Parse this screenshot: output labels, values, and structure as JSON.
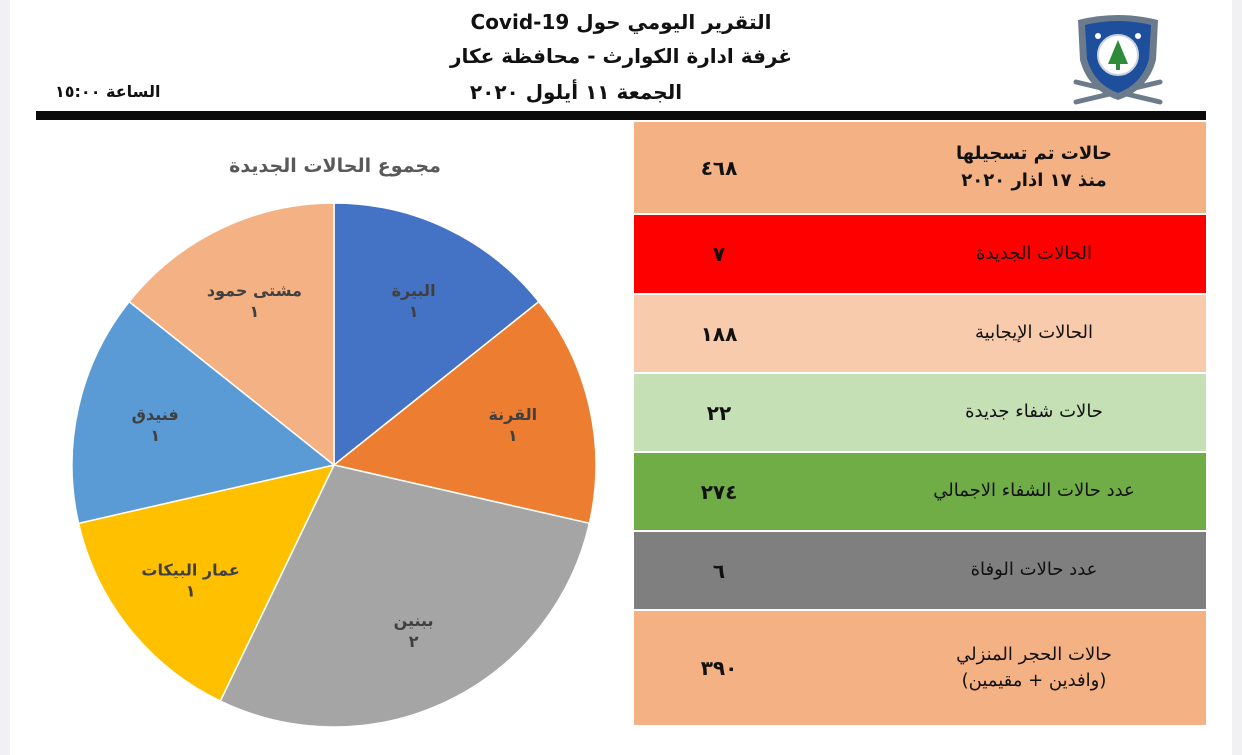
{
  "header": {
    "title_line1": "التقرير اليومي حول Covid-19",
    "title_line2": "غرفة ادارة الكوارث - محافظة عكار",
    "date": "الجمعة ١١ أيلول ٢٠٢٠",
    "time": "الساعة ١٥:٠٠"
  },
  "logo": {
    "icon": "cedar-shield-logo",
    "colors": {
      "shield": "#1d4f9c",
      "frame": "#6b7b8c"
    }
  },
  "stats": {
    "rows": [
      {
        "label": "حالات تم تسجيلها\nمنذ  ١٧ اذار ٢٠٢٠",
        "value": "٤٦٨",
        "color": "#f4b183"
      },
      {
        "label": "الحالات الجديدة",
        "value": "٧",
        "color": "#ff0000"
      },
      {
        "label": "الحالات الإيجابية",
        "value": "١٨٨",
        "color": "#f8cbad"
      },
      {
        "label": "حالات شفاء جديدة",
        "value": "٢٢",
        "color": "#c5e0b4"
      },
      {
        "label": "عدد حالات الشفاء الاجمالي",
        "value": "٢٧٤",
        "color": "#70ad47"
      },
      {
        "label": "عدد حالات الوفاة",
        "value": "٦",
        "color": "#7f7f7f"
      },
      {
        "label": "حالات الحجر المنزلي\n(وافدين + مقيمين)",
        "value": "٣٩٠",
        "color": "#f4b183"
      }
    ]
  },
  "chart_data": {
    "type": "pie",
    "title": "مجموع الحالات الجديدة",
    "slices": [
      {
        "name": "البيرة",
        "value": 1,
        "value_label": "١",
        "color": "#4472c4"
      },
      {
        "name": "القرنة",
        "value": 1,
        "value_label": "١",
        "color": "#ed7d31"
      },
      {
        "name": "ببنين",
        "value": 2,
        "value_label": "٢",
        "color": "#a5a5a5"
      },
      {
        "name": "عمار البيكات",
        "value": 1,
        "value_label": "١",
        "color": "#ffc000"
      },
      {
        "name": "فنيدق",
        "value": 1,
        "value_label": "١",
        "color": "#5b9bd5"
      },
      {
        "name": "مشتى حمود",
        "value": 1,
        "value_label": "١",
        "color": "#f4b183"
      }
    ]
  }
}
